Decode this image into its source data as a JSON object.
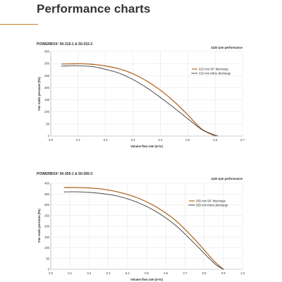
{
  "page_title": "Performance charts",
  "colors": {
    "accent": "#d07a1f",
    "series_primary": "#b06a22",
    "series_secondary": "#222222"
  },
  "chart_data": [
    {
      "type": "line",
      "title": "POWERBOX² 50-315-1 & 50-315-3",
      "subtitle": "1420 rpm performance",
      "xlabel": "Volume flow rate (m³/s)",
      "ylabel": "Fan static pressure (Pa)",
      "xlim": [
        0,
        0.7
      ],
      "ylim": [
        0,
        350
      ],
      "xticks": [
        "0.0",
        "0.1",
        "0.2",
        "0.3",
        "0.4",
        "0.5",
        "0.6",
        "0.7"
      ],
      "yticks": [
        "0",
        "50",
        "100",
        "150",
        "200",
        "250",
        "300",
        "350"
      ],
      "grid": true,
      "legend_position": "right",
      "series": [
        {
          "name": "315 mm 90° discharge",
          "style": "solid",
          "color": "#b06a22",
          "x": [
            0.04,
            0.08,
            0.12,
            0.16,
            0.2,
            0.25,
            0.3,
            0.35,
            0.4,
            0.45,
            0.5,
            0.55,
            0.6
          ],
          "y": [
            298,
            299,
            299,
            296,
            290,
            278,
            258,
            228,
            190,
            143,
            88,
            30,
            0
          ]
        },
        {
          "name": "315 mm inline discharge",
          "style": "dotted",
          "color": "#222222",
          "x": [
            0.04,
            0.08,
            0.12,
            0.16,
            0.2,
            0.25,
            0.3,
            0.35,
            0.4,
            0.45,
            0.5,
            0.55,
            0.58,
            0.61
          ],
          "y": [
            289,
            291,
            290,
            286,
            276,
            260,
            234,
            200,
            160,
            117,
            72,
            28,
            12,
            0
          ]
        }
      ]
    },
    {
      "type": "line",
      "title": "POWERBOX² 50-355-1 & 50-355-3",
      "subtitle": "1420 rpm performance",
      "xlabel": "Volume flow rate (m³/s)",
      "ylabel": "Fan static pressure (Pa)",
      "xlim": [
        0,
        1.0
      ],
      "ylim": [
        0,
        400
      ],
      "xticks": [
        "0.0",
        "0.1",
        "0.2",
        "0.3",
        "0.4",
        "0.5",
        "0.6",
        "0.7",
        "0.8",
        "0.9",
        "1.0"
      ],
      "yticks": [
        "0",
        "50",
        "100",
        "150",
        "200",
        "250",
        "300",
        "350",
        "400"
      ],
      "grid": true,
      "legend_position": "right",
      "series": [
        {
          "name": "355 mm 90° discharge",
          "style": "solid",
          "color": "#b06a22",
          "x": [
            0.07,
            0.15,
            0.25,
            0.35,
            0.45,
            0.55,
            0.65,
            0.75,
            0.85,
            0.9
          ],
          "y": [
            380,
            380,
            375,
            360,
            333,
            290,
            228,
            140,
            40,
            0
          ]
        },
        {
          "name": "355 mm inline discharge",
          "style": "dotted",
          "color": "#222222",
          "x": [
            0.07,
            0.15,
            0.25,
            0.35,
            0.45,
            0.55,
            0.65,
            0.75,
            0.85,
            0.9
          ],
          "y": [
            360,
            360,
            354,
            340,
            312,
            268,
            205,
            120,
            30,
            0
          ]
        }
      ]
    }
  ]
}
